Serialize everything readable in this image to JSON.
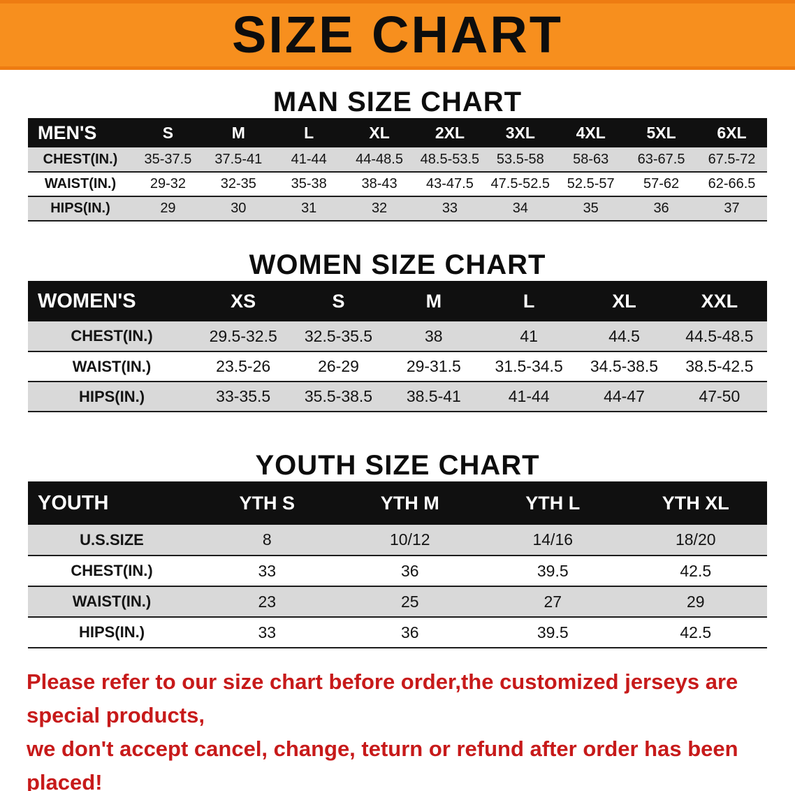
{
  "banner": {
    "title": "SIZE CHART"
  },
  "colors": {
    "banner_orange": "#F78F1E",
    "banner_edge_orange": "#EE7C12",
    "header_black": "#101010",
    "stripe_gray": "#D9D9D9",
    "disclaimer_red": "#C71A1A"
  },
  "men": {
    "heading": "MAN SIZE CHART",
    "table": {
      "header": [
        "MEN'S",
        "S",
        "M",
        "L",
        "XL",
        "2XL",
        "3XL",
        "4XL",
        "5XL",
        "6XL"
      ],
      "rows": [
        {
          "label": "CHEST(IN.)",
          "values": [
            "35-37.5",
            "37.5-41",
            "41-44",
            "44-48.5",
            "48.5-53.5",
            "53.5-58",
            "58-63",
            "63-67.5",
            "67.5-72"
          ]
        },
        {
          "label": "WAIST(IN.)",
          "values": [
            "29-32",
            "32-35",
            "35-38",
            "38-43",
            "43-47.5",
            "47.5-52.5",
            "52.5-57",
            "57-62",
            "62-66.5"
          ]
        },
        {
          "label": "HIPS(IN.)",
          "values": [
            "29",
            "30",
            "31",
            "32",
            "33",
            "34",
            "35",
            "36",
            "37"
          ]
        }
      ]
    }
  },
  "women": {
    "heading": "WOMEN SIZE CHART",
    "table": {
      "header": [
        "WOMEN'S",
        "XS",
        "S",
        "M",
        "L",
        "XL",
        "XXL"
      ],
      "rows": [
        {
          "label": "CHEST(IN.)",
          "values": [
            "29.5-32.5",
            "32.5-35.5",
            "38",
            "41",
            "44.5",
            "44.5-48.5"
          ]
        },
        {
          "label": "WAIST(IN.)",
          "values": [
            "23.5-26",
            "26-29",
            "29-31.5",
            "31.5-34.5",
            "34.5-38.5",
            "38.5-42.5"
          ]
        },
        {
          "label": "HIPS(IN.)",
          "values": [
            "33-35.5",
            "35.5-38.5",
            "38.5-41",
            "41-44",
            "44-47",
            "47-50"
          ]
        }
      ]
    }
  },
  "youth": {
    "heading": "YOUTH SIZE CHART",
    "table": {
      "header": [
        "YOUTH",
        "YTH S",
        "YTH M",
        "YTH L",
        "YTH XL"
      ],
      "rows": [
        {
          "label": "U.S.SIZE",
          "values": [
            "8",
            "10/12",
            "14/16",
            "18/20"
          ]
        },
        {
          "label": "CHEST(IN.)",
          "values": [
            "33",
            "36",
            "39.5",
            "42.5"
          ]
        },
        {
          "label": "WAIST(IN.)",
          "values": [
            "23",
            "25",
            "27",
            "29"
          ]
        },
        {
          "label": "HIPS(IN.)",
          "values": [
            "33",
            "36",
            "39.5",
            "42.5"
          ]
        }
      ]
    }
  },
  "disclaimer": {
    "line1": "Please refer to our size chart before order,the customized jerseys are special products,",
    "line2": "we don't accept cancel, change, teturn or refund after order has been placed!"
  }
}
